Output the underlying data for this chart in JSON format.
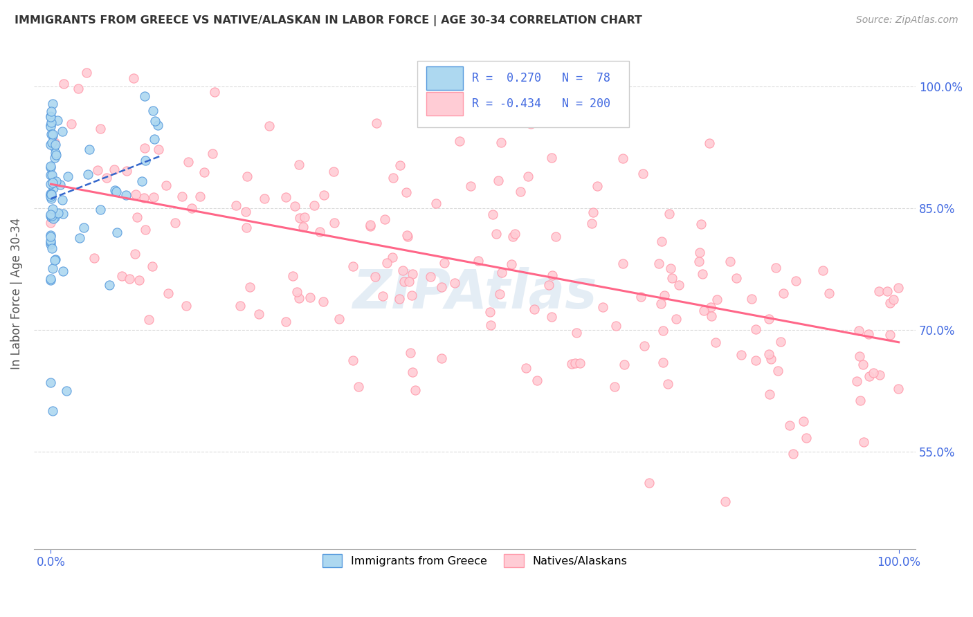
{
  "title": "IMMIGRANTS FROM GREECE VS NATIVE/ALASKAN IN LABOR FORCE | AGE 30-34 CORRELATION CHART",
  "source": "Source: ZipAtlas.com",
  "ylabel": "In Labor Force | Age 30-34",
  "xlim": [
    -0.02,
    1.02
  ],
  "ylim": [
    0.43,
    1.06
  ],
  "xtick_labels": [
    "0.0%",
    "100.0%"
  ],
  "xtick_positions": [
    0.0,
    1.0
  ],
  "ytick_positions": [
    0.55,
    0.7,
    0.85,
    1.0
  ],
  "ytick_labels": [
    "55.0%",
    "70.0%",
    "85.0%",
    "100.0%"
  ],
  "greece_fill_color": "#add8f0",
  "greece_edge_color": "#5599dd",
  "native_fill_color": "#ffccd5",
  "native_edge_color": "#ff99aa",
  "greece_line_color": "#3366cc",
  "native_line_color": "#ff6688",
  "legend_r_greece": "0.270",
  "legend_n_greece": "78",
  "legend_r_native": "-0.434",
  "legend_n_native": "200",
  "watermark": "ZIPAtlas",
  "axis_color": "#4169E1",
  "title_color": "#333333",
  "source_color": "#999999",
  "ylabel_color": "#555555",
  "grid_color": "#cccccc",
  "greece_line_x0": 0.0,
  "greece_line_x1": 0.13,
  "greece_line_y0": 0.862,
  "greece_line_y1": 0.915,
  "native_line_x0": 0.0,
  "native_line_x1": 1.0,
  "native_line_y0": 0.88,
  "native_line_y1": 0.685
}
